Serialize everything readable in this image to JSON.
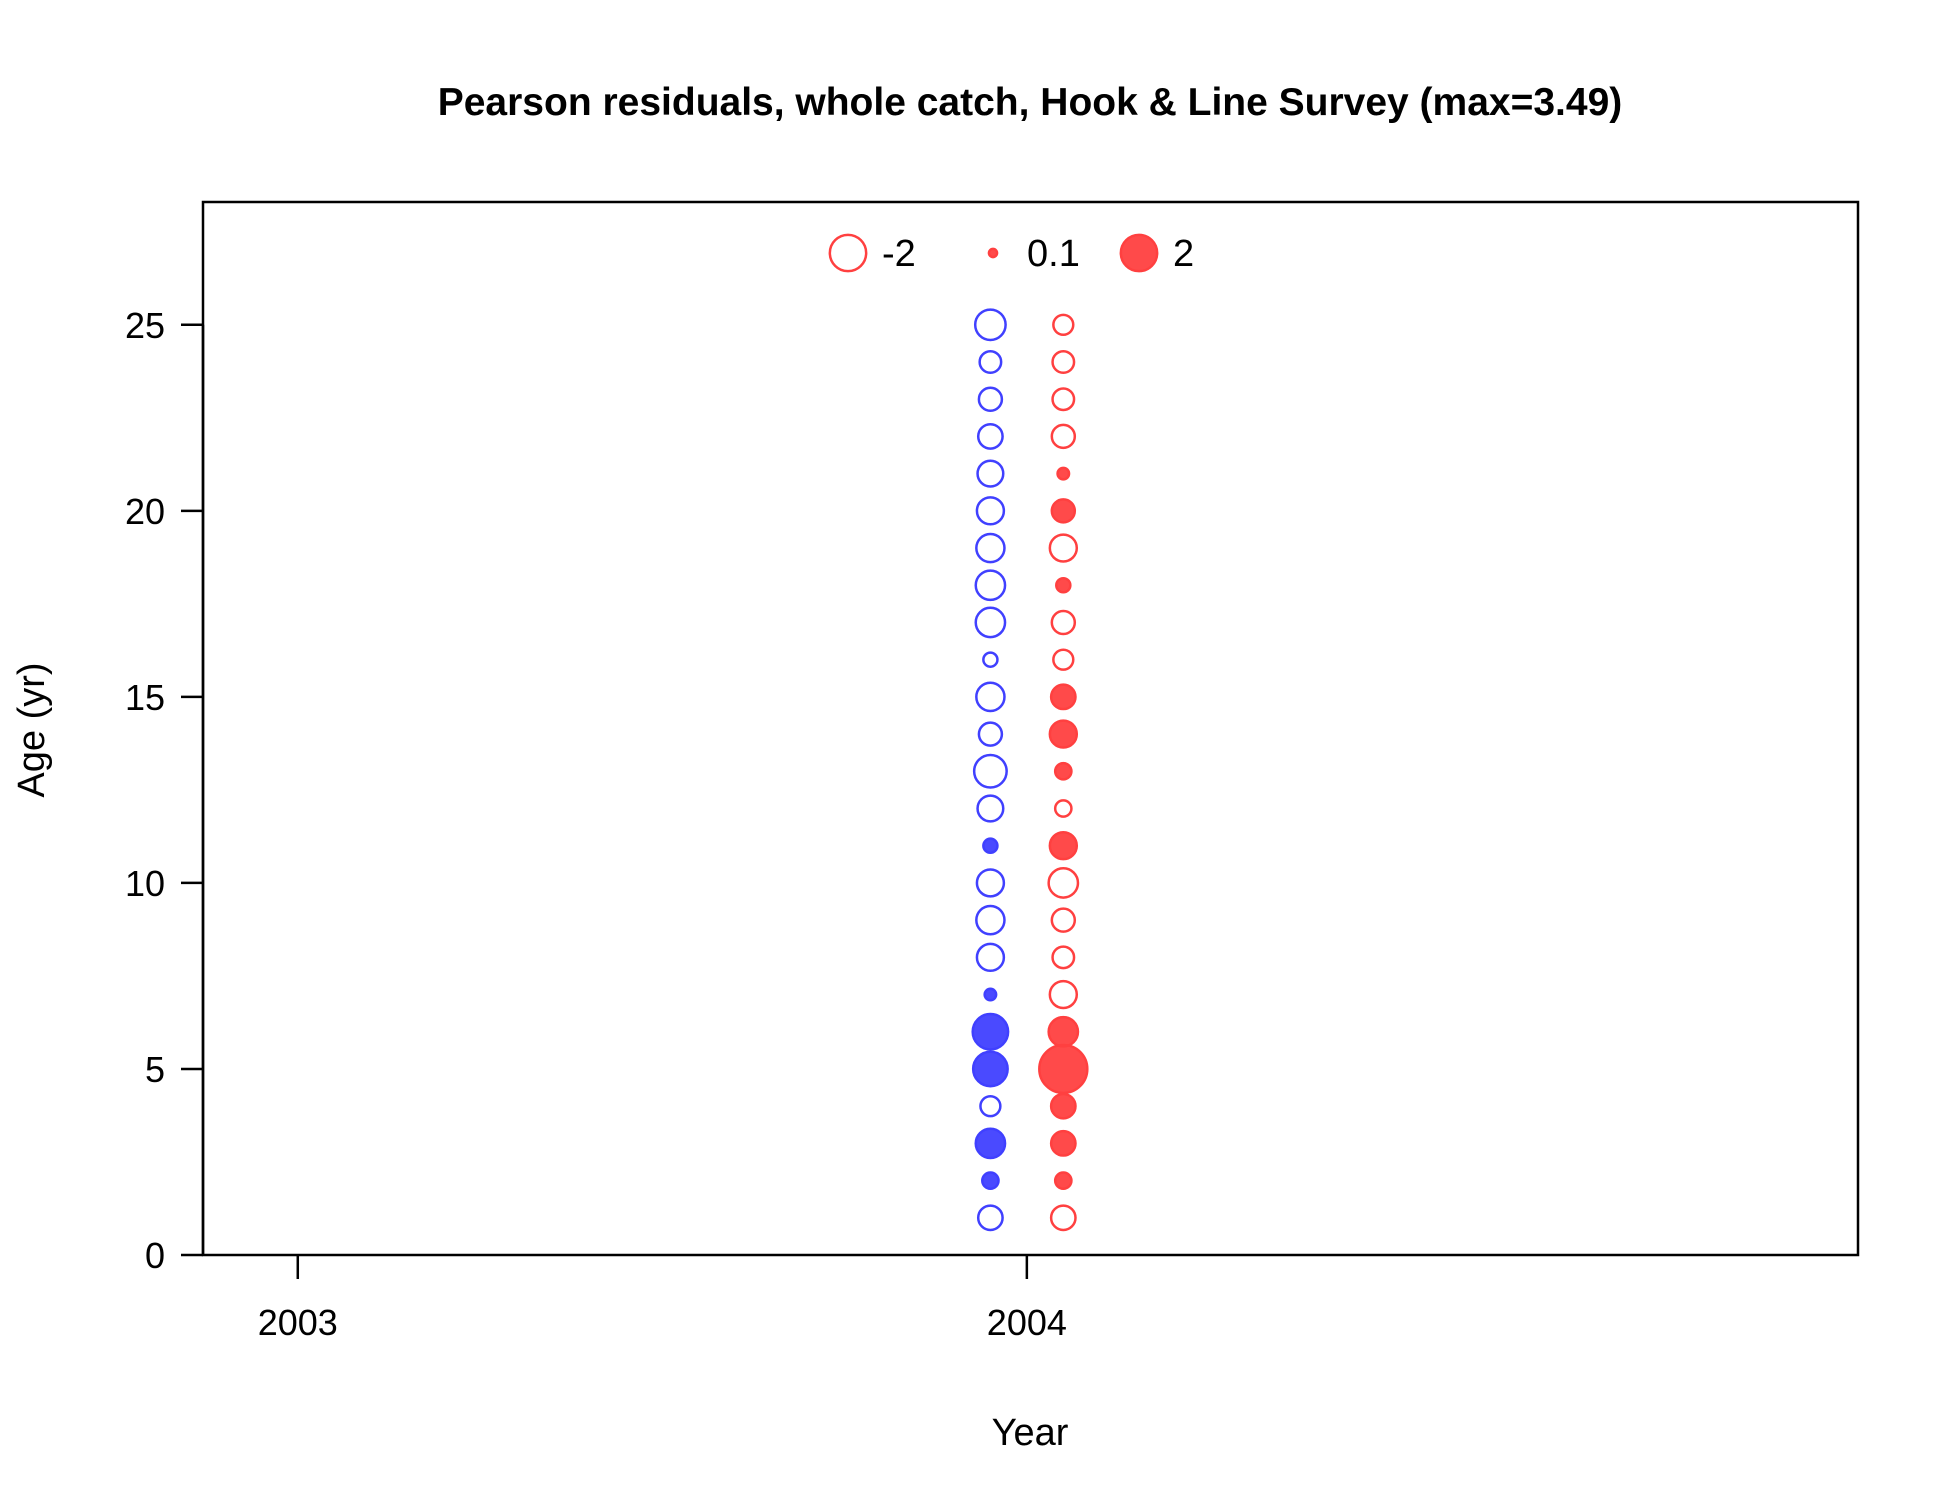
{
  "chart_data": {
    "type": "scatter",
    "title": "Pearson residuals, whole catch, Hook & Line Survey (max=3.49)",
    "xlabel": "Year",
    "ylabel": "Age (yr)",
    "xlim": [
      2002.87,
      2005.14
    ],
    "ylim": [
      0,
      28.3
    ],
    "x_ticks": [
      2003,
      2004
    ],
    "y_ticks": [
      0,
      5,
      10,
      15,
      20,
      25
    ],
    "grid": false,
    "legend_position": "top",
    "max_abs_residual": 3.49,
    "legend": [
      {
        "label": "-2",
        "value": -2
      },
      {
        "label": "0.1",
        "value": 0.1
      },
      {
        "label": "2",
        "value": 2
      }
    ],
    "colors": {
      "series_1": "#4040ff",
      "series_2": "#ff4040"
    },
    "series": [
      {
        "x": 2003.95,
        "color_key": "series_1",
        "points": [
          {
            "age": 1,
            "residual": -0.9
          },
          {
            "age": 2,
            "residual": 0.4
          },
          {
            "age": 3,
            "residual": 1.3
          },
          {
            "age": 4,
            "residual": -0.6
          },
          {
            "age": 5,
            "residual": 1.8
          },
          {
            "age": 6,
            "residual": 1.9
          },
          {
            "age": 7,
            "residual": 0.2
          },
          {
            "age": 8,
            "residual": -1.1
          },
          {
            "age": 9,
            "residual": -1.2
          },
          {
            "age": 10,
            "residual": -1.1
          },
          {
            "age": 11,
            "residual": 0.3
          },
          {
            "age": 12,
            "residual": -1.0
          },
          {
            "age": 13,
            "residual": -1.6
          },
          {
            "age": 14,
            "residual": -0.8
          },
          {
            "age": 15,
            "residual": -1.2
          },
          {
            "age": 16,
            "residual": -0.3
          },
          {
            "age": 17,
            "residual": -1.3
          },
          {
            "age": 18,
            "residual": -1.3
          },
          {
            "age": 19,
            "residual": -1.2
          },
          {
            "age": 20,
            "residual": -1.1
          },
          {
            "age": 21,
            "residual": -1.0
          },
          {
            "age": 22,
            "residual": -0.9
          },
          {
            "age": 23,
            "residual": -0.8
          },
          {
            "age": 24,
            "residual": -0.7
          },
          {
            "age": 25,
            "residual": -1.4
          }
        ]
      },
      {
        "x": 2004.05,
        "color_key": "series_2",
        "points": [
          {
            "age": 1,
            "residual": -0.9
          },
          {
            "age": 2,
            "residual": 0.4
          },
          {
            "age": 3,
            "residual": 0.9
          },
          {
            "age": 4,
            "residual": 0.9
          },
          {
            "age": 5,
            "residual": 3.49
          },
          {
            "age": 6,
            "residual": 1.3
          },
          {
            "age": 7,
            "residual": -1.1
          },
          {
            "age": 8,
            "residual": -0.7
          },
          {
            "age": 9,
            "residual": -0.8
          },
          {
            "age": 10,
            "residual": -1.3
          },
          {
            "age": 11,
            "residual": 1.1
          },
          {
            "age": 12,
            "residual": -0.4
          },
          {
            "age": 13,
            "residual": 0.4
          },
          {
            "age": 14,
            "residual": 1.1
          },
          {
            "age": 15,
            "residual": 0.9
          },
          {
            "age": 16,
            "residual": -0.6
          },
          {
            "age": 17,
            "residual": -0.8
          },
          {
            "age": 18,
            "residual": 0.3
          },
          {
            "age": 19,
            "residual": -1.1
          },
          {
            "age": 20,
            "residual": 0.8
          },
          {
            "age": 21,
            "residual": 0.2
          },
          {
            "age": 22,
            "residual": -0.8
          },
          {
            "age": 23,
            "residual": -0.7
          },
          {
            "age": 24,
            "residual": -0.7
          },
          {
            "age": 25,
            "residual": -0.6
          }
        ]
      }
    ]
  }
}
